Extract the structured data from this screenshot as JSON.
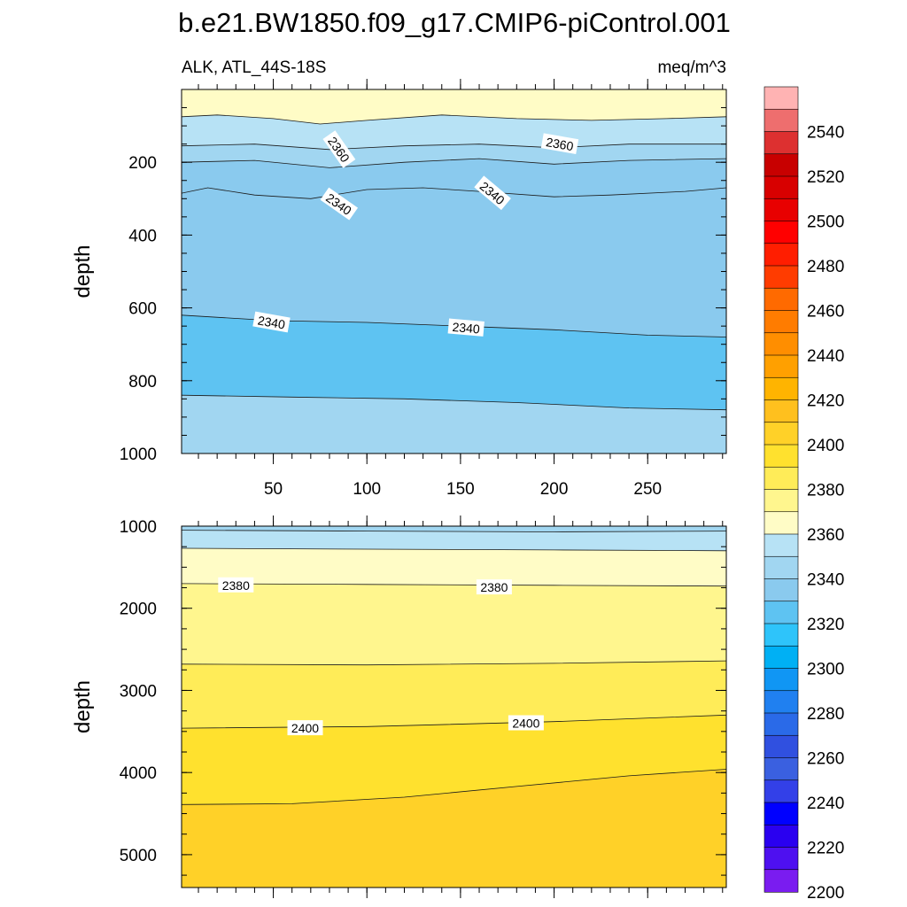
{
  "title": "b.e21.BW1850.f09_g17.CMIP6-piControl.001",
  "chart_data": {
    "type": "contour",
    "subtitle_left": "ALK, ATL_44S-18S",
    "subtitle_right": "meq/m^3",
    "x_range": [
      1,
      292
    ],
    "x_ticks": [
      50,
      100,
      150,
      200,
      250
    ],
    "x_tick_labels": [
      "50",
      "100",
      "150",
      "200",
      "250"
    ],
    "colors": {
      "outline": "#000000",
      "contour_line": "#1a1a1a",
      "label_box": "#ffffff"
    },
    "panels": [
      {
        "name": "upper",
        "ylabel": "depth",
        "y_range": [
          0,
          1000
        ],
        "y_ticks": [
          200,
          400,
          600,
          800,
          1000
        ],
        "y_tick_labels": [
          "200",
          "400",
          "600",
          "800",
          "1000"
        ],
        "bottom_fill": "#a1d6f1",
        "layers": [
          {
            "lower": 2370,
            "fill": "#fffcc6",
            "line_depths": [
              [
                0,
                0
              ],
              [
                292,
                0
              ]
            ]
          },
          {
            "lower": 2360,
            "fill": "#b7e2f5",
            "line_depths": [
              [
                1,
                75
              ],
              [
                20,
                70
              ],
              [
                50,
                80
              ],
              [
                75,
                95
              ],
              [
                100,
                85
              ],
              [
                140,
                70
              ],
              [
                180,
                80
              ],
              [
                220,
                85
              ],
              [
                260,
                80
              ],
              [
                292,
                75
              ]
            ]
          },
          {
            "lower": 2350,
            "fill": "#a1d6f1",
            "line_depths": [
              [
                1,
                155
              ],
              [
                40,
                150
              ],
              [
                80,
                165
              ],
              [
                120,
                155
              ],
              [
                160,
                150
              ],
              [
                200,
                160
              ],
              [
                240,
                150
              ],
              [
                292,
                150
              ]
            ]
          },
          {
            "lower": 2345,
            "fill": "#8acaee",
            "line_depths": [
              [
                1,
                200
              ],
              [
                40,
                195
              ],
              [
                80,
                215
              ],
              [
                120,
                200
              ],
              [
                160,
                190
              ],
              [
                200,
                205
              ],
              [
                240,
                195
              ],
              [
                292,
                190
              ]
            ]
          },
          {
            "lower": 2340,
            "fill": "#8acaee",
            "line_depths": [
              [
                1,
                285
              ],
              [
                15,
                270
              ],
              [
                40,
                290
              ],
              [
                70,
                300
              ],
              [
                100,
                275
              ],
              [
                130,
                270
              ],
              [
                160,
                280
              ],
              [
                200,
                295
              ],
              [
                230,
                290
              ],
              [
                270,
                280
              ],
              [
                292,
                270
              ]
            ]
          },
          {
            "lower": 2335,
            "fill": "#5ec3f2",
            "line_depths": [
              [
                1,
                620
              ],
              [
                50,
                635
              ],
              [
                100,
                640
              ],
              [
                150,
                650
              ],
              [
                200,
                660
              ],
              [
                250,
                675
              ],
              [
                292,
                680
              ]
            ]
          },
          {
            "lower": 2345,
            "fill": "#8acaee",
            "line_depths": [
              [
                1,
                840
              ],
              [
                60,
                845
              ],
              [
                120,
                850
              ],
              [
                180,
                860
              ],
              [
                240,
                875
              ],
              [
                292,
                880
              ]
            ]
          }
        ],
        "contour_labels": [
          {
            "text": "2360",
            "x": 85,
            "depth": 165,
            "angle": 55
          },
          {
            "text": "2360",
            "x": 203,
            "depth": 150,
            "angle": 10
          },
          {
            "text": "2340",
            "x": 85,
            "depth": 315,
            "angle": 35
          },
          {
            "text": "2340",
            "x": 167,
            "depth": 285,
            "angle": 40
          },
          {
            "text": "2340",
            "x": 49,
            "depth": 640,
            "angle": 10
          },
          {
            "text": "2340",
            "x": 153,
            "depth": 655,
            "angle": 5
          }
        ]
      },
      {
        "name": "lower",
        "ylabel": "depth",
        "y_range": [
          1000,
          5400
        ],
        "y_ticks": [
          1000,
          2000,
          3000,
          4000,
          5000
        ],
        "y_tick_labels": [
          "1000",
          "2000",
          "3000",
          "4000",
          "5000"
        ],
        "bottom_fill": "#ffd128",
        "layers": [
          {
            "lower": 2355,
            "fill": "#a1d6f1",
            "line_depths": [
              [
                1,
                1000
              ],
              [
                292,
                1000
              ]
            ]
          },
          {
            "lower": 2365,
            "fill": "#b7e2f5",
            "line_depths": [
              [
                1,
                1050
              ],
              [
                100,
                1060
              ],
              [
                200,
                1070
              ],
              [
                292,
                1060
              ]
            ]
          },
          {
            "lower": 2375,
            "fill": "#fffcc6",
            "line_depths": [
              [
                1,
                1270
              ],
              [
                100,
                1280
              ],
              [
                200,
                1290
              ],
              [
                292,
                1300
              ]
            ]
          },
          {
            "lower": 2385,
            "fill": "#fff68e",
            "line_depths": [
              [
                1,
                1700
              ],
              [
                100,
                1710
              ],
              [
                200,
                1720
              ],
              [
                292,
                1730
              ]
            ]
          },
          {
            "lower": 2395,
            "fill": "#ffec58",
            "line_depths": [
              [
                1,
                2680
              ],
              [
                100,
                2690
              ],
              [
                200,
                2670
              ],
              [
                292,
                2640
              ]
            ]
          },
          {
            "lower": 2405,
            "fill": "#ffe12e",
            "line_depths": [
              [
                1,
                3460
              ],
              [
                100,
                3440
              ],
              [
                200,
                3380
              ],
              [
                292,
                3300
              ]
            ]
          },
          {
            "lower": 2415,
            "fill": "#ffd128",
            "line_depths": [
              [
                1,
                4390
              ],
              [
                60,
                4380
              ],
              [
                120,
                4300
              ],
              [
                180,
                4170
              ],
              [
                240,
                4040
              ],
              [
                292,
                3960
              ]
            ]
          }
        ],
        "contour_labels": [
          {
            "text": "2380",
            "x": 30,
            "depth": 1720,
            "angle": 0
          },
          {
            "text": "2380",
            "x": 168,
            "depth": 1745,
            "angle": 0
          },
          {
            "text": "2400",
            "x": 67,
            "depth": 3460,
            "angle": 0
          },
          {
            "text": "2400",
            "x": 185,
            "depth": 3400,
            "angle": 0
          }
        ]
      }
    ],
    "colorbar": {
      "labels": [
        "2540",
        "2520",
        "2500",
        "2480",
        "2460",
        "2440",
        "2420",
        "2400",
        "2380",
        "2360",
        "2340",
        "2320",
        "2300",
        "2280",
        "2260",
        "2240",
        "2220",
        "2200"
      ],
      "colors": [
        "#ffb3b3",
        "#ee6e6e",
        "#dd3030",
        "#c80000",
        "#d80000",
        "#e80000",
        "#ff0000",
        "#ff1e00",
        "#ff3c00",
        "#ff6a00",
        "#ff7c00",
        "#ff8e00",
        "#ffa000",
        "#ffb400",
        "#ffc01e",
        "#ffd128",
        "#ffe12e",
        "#ffec58",
        "#fff68e",
        "#fffcc6",
        "#b7e2f5",
        "#a1d6f1",
        "#8acaee",
        "#5ec3f2",
        "#2ec4fa",
        "#00b0f4",
        "#1096f4",
        "#2080f0",
        "#2a6ae8",
        "#3050e0",
        "#3a60e0",
        "#3340e8",
        "#0000ff",
        "#2a00f0",
        "#4e10f0",
        "#7a1cf0"
      ]
    }
  }
}
